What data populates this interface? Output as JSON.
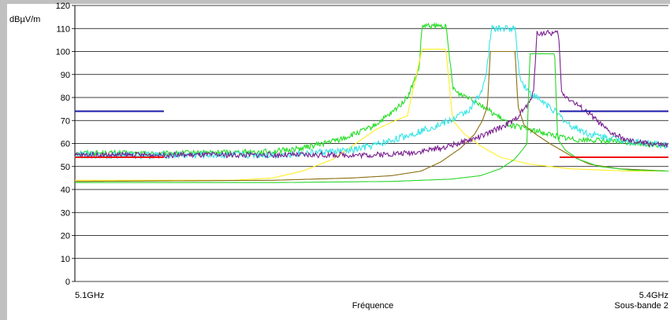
{
  "chart_data": {
    "type": "line",
    "xlabel": "Fréquence",
    "ylabel": "dBµV/m",
    "x_tick_labels": {
      "left": "5.1GHz",
      "right": "5.4GHz"
    },
    "sub_label": "Sous-bande 2",
    "xlim": [
      5.1,
      5.4
    ],
    "ylim": [
      0,
      120
    ],
    "y_ticks": [
      0,
      10,
      20,
      30,
      40,
      50,
      60,
      70,
      80,
      90,
      100,
      110,
      120
    ],
    "grid": true,
    "legend": "none",
    "limit_lines": [
      {
        "color": "#1a1aa8",
        "value": 74,
        "x": [
          5.1,
          5.145
        ]
      },
      {
        "color": "#1a1aa8",
        "value": 74,
        "x": [
          5.345,
          5.4
        ]
      },
      {
        "color": "#ee1111",
        "value": 54,
        "x": [
          5.1,
          5.145
        ]
      },
      {
        "color": "#ee1111",
        "value": 54,
        "x": [
          5.345,
          5.4
        ]
      }
    ],
    "series": [
      {
        "color": "#22dd22",
        "noise": 1.2,
        "points": [
          [
            5.1,
            56
          ],
          [
            5.145,
            55.5
          ],
          [
            5.16,
            56
          ],
          [
            5.2,
            56.5
          ],
          [
            5.215,
            58
          ],
          [
            5.235,
            62
          ],
          [
            5.25,
            67
          ],
          [
            5.26,
            73
          ],
          [
            5.268,
            80
          ],
          [
            5.272,
            88
          ],
          [
            5.274,
            93
          ],
          [
            5.2755,
            111
          ],
          [
            5.2875,
            111
          ],
          [
            5.289,
            100
          ],
          [
            5.291,
            85
          ],
          [
            5.293,
            82
          ],
          [
            5.3,
            80
          ],
          [
            5.31,
            74
          ],
          [
            5.32,
            68
          ],
          [
            5.335,
            65
          ],
          [
            5.35,
            62
          ],
          [
            5.37,
            61
          ],
          [
            5.4,
            59
          ]
        ]
      },
      {
        "color": "#ffee22",
        "noise": 0,
        "points": [
          [
            5.1,
            44
          ],
          [
            5.18,
            44
          ],
          [
            5.2,
            45
          ],
          [
            5.215,
            48
          ],
          [
            5.23,
            53
          ],
          [
            5.242,
            60
          ],
          [
            5.252,
            66
          ],
          [
            5.262,
            70
          ],
          [
            5.268,
            72
          ],
          [
            5.2755,
            101
          ],
          [
            5.2875,
            101
          ],
          [
            5.291,
            70
          ],
          [
            5.297,
            64
          ],
          [
            5.305,
            59
          ],
          [
            5.315,
            54
          ],
          [
            5.33,
            51
          ],
          [
            5.35,
            49
          ],
          [
            5.38,
            48
          ],
          [
            5.4,
            48
          ]
        ]
      },
      {
        "color": "#33e5e5",
        "noise": 1.5,
        "points": [
          [
            5.1,
            55
          ],
          [
            5.2,
            55
          ],
          [
            5.22,
            56
          ],
          [
            5.24,
            57
          ],
          [
            5.255,
            60
          ],
          [
            5.27,
            64
          ],
          [
            5.28,
            67
          ],
          [
            5.29,
            70
          ],
          [
            5.3,
            75
          ],
          [
            5.305,
            82
          ],
          [
            5.308,
            90
          ],
          [
            5.3105,
            110
          ],
          [
            5.3225,
            110
          ],
          [
            5.325,
            88
          ],
          [
            5.33,
            82
          ],
          [
            5.34,
            76
          ],
          [
            5.35,
            68
          ],
          [
            5.36,
            64
          ],
          [
            5.38,
            61
          ],
          [
            5.4,
            59
          ]
        ]
      },
      {
        "color": "#8a6f10",
        "noise": 0,
        "points": [
          [
            5.1,
            43.5
          ],
          [
            5.2,
            44
          ],
          [
            5.24,
            45
          ],
          [
            5.26,
            46
          ],
          [
            5.275,
            48
          ],
          [
            5.285,
            52
          ],
          [
            5.295,
            58
          ],
          [
            5.302,
            64
          ],
          [
            5.306,
            70
          ],
          [
            5.3085,
            76
          ],
          [
            5.31,
            100
          ],
          [
            5.3225,
            100
          ],
          [
            5.324,
            76
          ],
          [
            5.327,
            68
          ],
          [
            5.333,
            64
          ],
          [
            5.34,
            60
          ],
          [
            5.35,
            55
          ],
          [
            5.36,
            51
          ],
          [
            5.375,
            49
          ],
          [
            5.4,
            48
          ]
        ]
      },
      {
        "color": "#7a1f8f",
        "noise": 1.2,
        "points": [
          [
            5.1,
            55
          ],
          [
            5.22,
            55
          ],
          [
            5.25,
            55
          ],
          [
            5.27,
            56
          ],
          [
            5.285,
            58
          ],
          [
            5.298,
            61
          ],
          [
            5.308,
            64
          ],
          [
            5.315,
            67
          ],
          [
            5.322,
            70
          ],
          [
            5.325,
            73
          ],
          [
            5.33,
            78
          ],
          [
            5.332,
            84
          ],
          [
            5.3335,
            108
          ],
          [
            5.3445,
            108
          ],
          [
            5.346,
            82
          ],
          [
            5.352,
            78
          ],
          [
            5.36,
            73
          ],
          [
            5.37,
            65
          ],
          [
            5.38,
            61
          ],
          [
            5.39,
            60
          ],
          [
            5.4,
            59
          ]
        ]
      },
      {
        "color": "#2ad62a",
        "noise": 0,
        "points": [
          [
            5.1,
            43
          ],
          [
            5.2,
            43
          ],
          [
            5.26,
            43.5
          ],
          [
            5.29,
            44.5
          ],
          [
            5.305,
            46
          ],
          [
            5.315,
            49
          ],
          [
            5.322,
            53
          ],
          [
            5.326,
            57
          ],
          [
            5.3285,
            60
          ],
          [
            5.33,
            99
          ],
          [
            5.3425,
            99
          ],
          [
            5.344,
            62
          ],
          [
            5.348,
            57
          ],
          [
            5.355,
            53
          ],
          [
            5.365,
            50
          ],
          [
            5.38,
            48.5
          ],
          [
            5.4,
            48
          ]
        ]
      }
    ]
  }
}
